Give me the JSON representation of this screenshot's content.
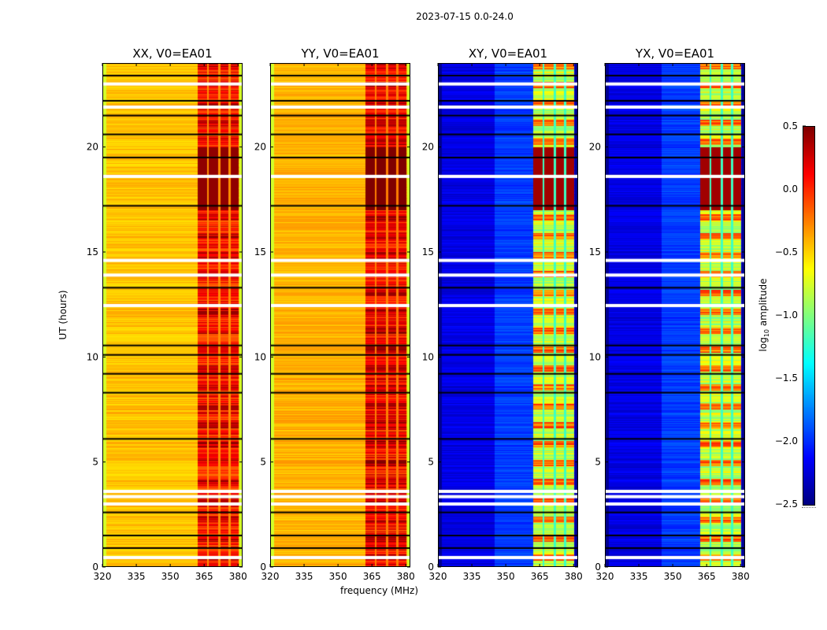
{
  "figure": {
    "suptitle": "2023-07-15 0.0-24.0",
    "ylabel": "UT (hours)",
    "xlabel": "frequency (MHz)",
    "colorbar_label_main": "log",
    "colorbar_label_sub": "10",
    "colorbar_label_tail": " amplitude"
  },
  "chart_data": {
    "type": "heatmap",
    "title": "2023-07-15 0.0-24.0",
    "xlabel": "frequency (MHz)",
    "ylabel": "UT (hours)",
    "xlim": [
      320,
      382
    ],
    "ylim": [
      0,
      24
    ],
    "xticks": [
      "320",
      "335",
      "350",
      "365",
      "380"
    ],
    "xtick_values": [
      320,
      335,
      350,
      365,
      380
    ],
    "yticks": [
      "0",
      "5",
      "10",
      "15",
      "20"
    ],
    "ytick_values": [
      0,
      5,
      10,
      15,
      20
    ],
    "colormap": "jet",
    "colorbar": {
      "label": "log10 amplitude",
      "range": [
        -2.5,
        0.5
      ],
      "ticks": [
        "−2.5",
        "−2.0",
        "−1.5",
        "−1.0",
        "−0.5",
        "0.0",
        "0.5"
      ],
      "tick_values": [
        -2.5,
        -2.0,
        -1.5,
        -1.0,
        -0.5,
        0.0,
        0.5
      ],
      "placement": "right"
    },
    "panels": [
      {
        "title": "XX, V0=EA01",
        "pol": "XX",
        "base_level": -0.45,
        "edge_level": -0.75,
        "band_level": 0.05,
        "peak_level": 0.45
      },
      {
        "title": "YY, V0=EA01",
        "pol": "YY",
        "base_level": -0.4,
        "edge_level": -0.75,
        "band_level": 0.1,
        "peak_level": 0.5
      },
      {
        "title": "XY, V0=EA01",
        "pol": "XY",
        "base_level": -2.2,
        "edge_level": -2.45,
        "band_level": -0.8,
        "peak_level": 0.4
      },
      {
        "title": "YX, V0=EA01",
        "pol": "YX",
        "base_level": -2.2,
        "edge_level": -2.45,
        "band_level": -0.8,
        "peak_level": 0.4
      }
    ],
    "rfi_band_MHz": [
      [
        362,
        366
      ],
      [
        367,
        371
      ],
      [
        372,
        375.5
      ],
      [
        376.5,
        380
      ]
    ],
    "bright_interval_UT": [
      17.0,
      20.0
    ],
    "flagged_rows_UT_blank": [
      0.45,
      3.0,
      3.35,
      3.6,
      12.45,
      13.9,
      14.6,
      18.6,
      21.9,
      23.0
    ],
    "flagged_rows_UT_black": [
      0.9,
      1.5,
      2.6,
      6.1,
      8.3,
      9.2,
      10.55,
      10.1,
      13.3,
      17.2,
      19.5,
      20.6,
      21.5,
      22.2,
      23.4
    ]
  }
}
